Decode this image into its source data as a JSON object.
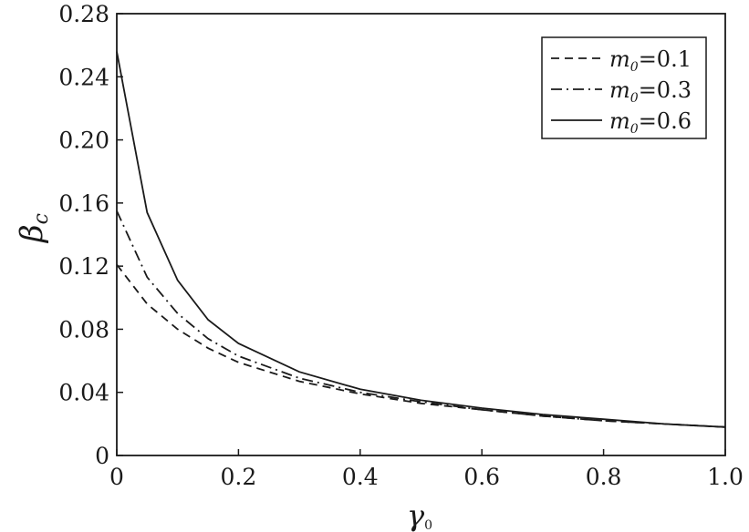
{
  "chart_data": {
    "type": "line",
    "title": "",
    "xlabel": {
      "main": "γ",
      "sub": "0"
    },
    "ylabel": {
      "main": "β",
      "sub": "c"
    },
    "xlim": [
      0,
      1.0
    ],
    "ylim": [
      0,
      0.28
    ],
    "x_ticks": [
      "0",
      "0.2",
      "0.4",
      "0.6",
      "0.8",
      "1.0"
    ],
    "y_ticks": [
      "0",
      "0.04",
      "0.08",
      "0.12",
      "0.16",
      "0.20",
      "0.24",
      "0.28"
    ],
    "grid": false,
    "legend_position": "top-right",
    "series": [
      {
        "name": {
          "main": "m",
          "sub": "0",
          "tail": "=0.1"
        },
        "style": "dashed",
        "x": [
          0,
          0.05,
          0.1,
          0.15,
          0.2,
          0.3,
          0.4,
          0.5,
          0.6,
          0.7,
          0.8,
          0.9,
          1.0
        ],
        "y": [
          0.121,
          0.096,
          0.08,
          0.068,
          0.059,
          0.047,
          0.039,
          0.033,
          0.029,
          0.025,
          0.022,
          0.02,
          0.018
        ]
      },
      {
        "name": {
          "main": "m",
          "sub": "0",
          "tail": "=0.3"
        },
        "style": "dashdot",
        "x": [
          0,
          0.05,
          0.1,
          0.15,
          0.2,
          0.3,
          0.4,
          0.5,
          0.6,
          0.7,
          0.8,
          0.9,
          1.0
        ],
        "y": [
          0.155,
          0.113,
          0.09,
          0.074,
          0.063,
          0.049,
          0.04,
          0.034,
          0.029,
          0.025,
          0.022,
          0.02,
          0.018
        ]
      },
      {
        "name": {
          "main": "m",
          "sub": "0",
          "tail": "=0.6"
        },
        "style": "solid",
        "x": [
          0,
          0.05,
          0.1,
          0.15,
          0.2,
          0.3,
          0.4,
          0.5,
          0.6,
          0.7,
          0.8,
          0.9,
          1.0
        ],
        "y": [
          0.256,
          0.154,
          0.111,
          0.086,
          0.071,
          0.053,
          0.042,
          0.035,
          0.03,
          0.026,
          0.023,
          0.02,
          0.018
        ]
      }
    ]
  }
}
